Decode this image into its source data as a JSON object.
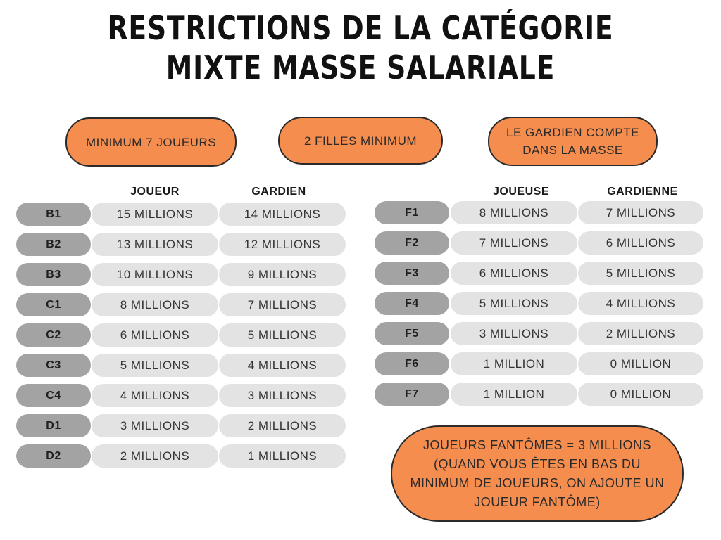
{
  "title": {
    "line1": "RESTRICTIONS DE LA CATÉGORIE",
    "line2": "MIXTE MASSE SALARIALE"
  },
  "rules": {
    "minimum_players": "MINIMUM 7 JOUEURS",
    "girls_minimum": "2 FILLES MINIMUM",
    "goalie_counts_line1": "LE GARDIEN COMPTE",
    "goalie_counts_line2": "DANS LA MASSE"
  },
  "ghost_note": {
    "line1": "JOUEURS FANTÔMES = 3 MILLIONS",
    "line2": "(QUAND VOUS ÊTES EN BAS DU",
    "line3": "MINIMUM DE JOUEURS, ON AJOUTE UN",
    "line4": "JOUEUR FANTÔME)"
  },
  "left_table": {
    "headers": {
      "player": "JOUEUR",
      "goalie": "GARDIEN"
    },
    "rows": [
      {
        "code": "B1",
        "player": "15 MILLIONS",
        "goalie": "14 MILLIONS"
      },
      {
        "code": "B2",
        "player": "13 MILLIONS",
        "goalie": "12 MILLIONS"
      },
      {
        "code": "B3",
        "player": "10 MILLIONS",
        "goalie": "9 MILLIONS"
      },
      {
        "code": "C1",
        "player": "8 MILLIONS",
        "goalie": "7 MILLIONS"
      },
      {
        "code": "C2",
        "player": "6 MILLIONS",
        "goalie": "5 MILLIONS"
      },
      {
        "code": "C3",
        "player": "5 MILLIONS",
        "goalie": "4 MILLIONS"
      },
      {
        "code": "C4",
        "player": "4 MILLIONS",
        "goalie": "3 MILLIONS"
      },
      {
        "code": "D1",
        "player": "3 MILLIONS",
        "goalie": "2 MILLIONS"
      },
      {
        "code": "D2",
        "player": "2 MILLIONS",
        "goalie": "1 MILLIONS"
      }
    ]
  },
  "right_table": {
    "headers": {
      "player": "JOUEUSE",
      "goalie": "GARDIENNE"
    },
    "rows": [
      {
        "code": "F1",
        "player": "8 MILLIONS",
        "goalie": "7 MILLIONS"
      },
      {
        "code": "F2",
        "player": "7 MILLIONS",
        "goalie": "6 MILLIONS"
      },
      {
        "code": "F3",
        "player": "6 MILLIONS",
        "goalie": "5 MILLIONS"
      },
      {
        "code": "F4",
        "player": "5 MILLIONS",
        "goalie": "4 MILLIONS"
      },
      {
        "code": "F5",
        "player": "3 MILLIONS",
        "goalie": "2 MILLIONS"
      },
      {
        "code": "F6",
        "player": "1 MILLION",
        "goalie": "0 MILLION"
      },
      {
        "code": "F7",
        "player": "1 MILLION",
        "goalie": "0 MILLION"
      }
    ]
  },
  "colors": {
    "accent_orange": "#f58d4f",
    "code_gray": "#a3a3a3",
    "value_gray": "#e3e3e3"
  }
}
